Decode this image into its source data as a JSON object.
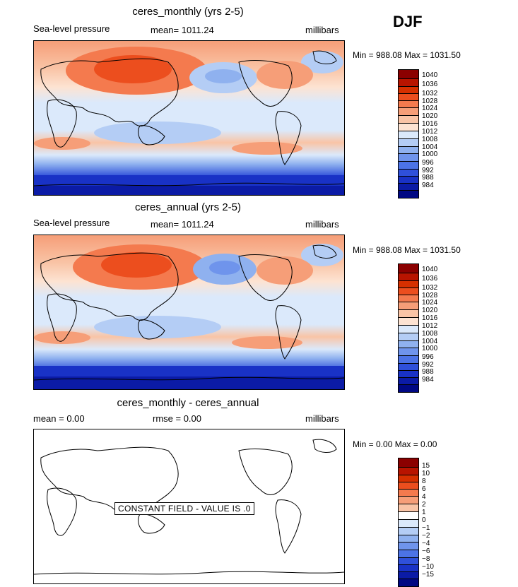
{
  "season": "DJF",
  "colorbar_colors": [
    "#8b0000",
    "#b81400",
    "#d63000",
    "#ec4e1e",
    "#f47a4e",
    "#f69e78",
    "#f9c4a6",
    "#fde3d2",
    "#dbe9fb",
    "#b4cdf5",
    "#8fb1ef",
    "#6f94ec",
    "#4c73e6",
    "#2f50da",
    "#1932c6",
    "#0b1ba6",
    "#000883"
  ],
  "panels": [
    {
      "title": "ceres_monthly (yrs 2-5)",
      "left_label": "Sea-level pressure",
      "mean_label": "mean= 1011.24",
      "units": "millibars",
      "minmax": "Min = 988.08 Max = 1031.50",
      "levels": [
        "1040",
        "1036",
        "1032",
        "1028",
        "1024",
        "1020",
        "1016",
        "1012",
        "1008",
        "1004",
        "1000",
        "996",
        "992",
        "988",
        "984"
      ]
    },
    {
      "title": "ceres_annual (yrs 2-5)",
      "left_label": "Sea-level pressure",
      "mean_label": "mean= 1011.24",
      "units": "millibars",
      "minmax": "Min = 988.08 Max = 1031.50",
      "levels": [
        "1040",
        "1036",
        "1032",
        "1028",
        "1024",
        "1020",
        "1016",
        "1012",
        "1008",
        "1004",
        "1000",
        "996",
        "992",
        "988",
        "984"
      ]
    },
    {
      "title": "ceres_monthly - ceres_annual",
      "left_label": "mean =    0.00",
      "mean_label": "rmse =    0.00",
      "units": "millibars",
      "minmax": "Min =    0.00 Max =    0.00",
      "constant_field": "CONSTANT FIELD - VALUE IS .0",
      "levels": [
        "15",
        "10",
        "8",
        "6",
        "4",
        "2",
        "1",
        "0",
        "−1",
        "−2",
        "−4",
        "−6",
        "−8",
        "−10",
        "−15"
      ]
    }
  ]
}
